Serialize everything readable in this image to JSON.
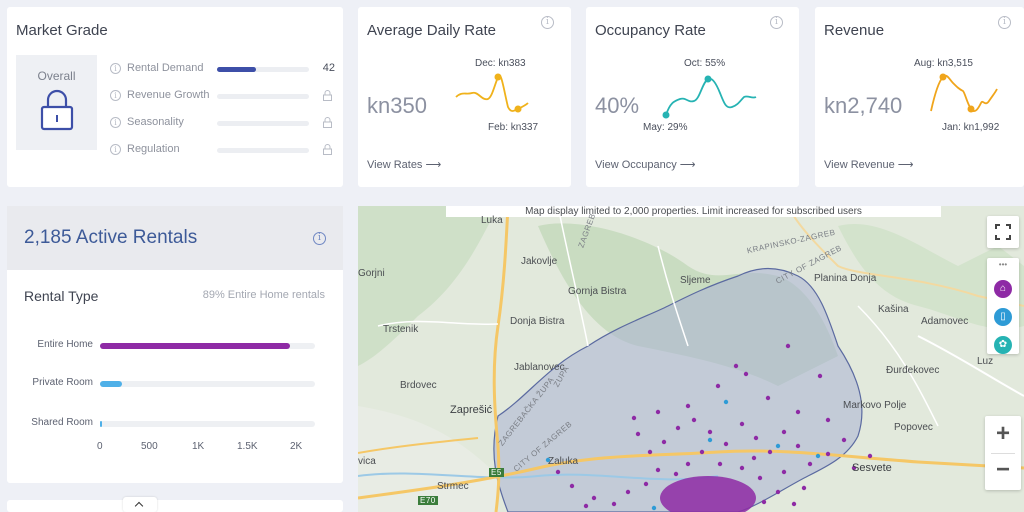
{
  "market_grade": {
    "title": "Market Grade",
    "overall_label": "Overall",
    "metrics": [
      {
        "label": "Rental Demand",
        "value": "42",
        "fill": 0.42,
        "locked": false
      },
      {
        "label": "Revenue Growth",
        "locked": true
      },
      {
        "label": "Seasonality",
        "locked": true
      },
      {
        "label": "Regulation",
        "locked": true
      }
    ],
    "accent": "#3d4fa8"
  },
  "adr": {
    "title": "Average Daily Rate",
    "value": "kn350",
    "high": "Dec: kn383",
    "low": "Feb: kn337",
    "link": "View Rates ⟶",
    "color": "#f0b21b"
  },
  "occupancy": {
    "title": "Occupancy Rate",
    "value": "40%",
    "high": "Oct: 55%",
    "low": "May: 29%",
    "link": "View Occupancy ⟶",
    "color": "#26b3b3"
  },
  "revenue": {
    "title": "Revenue",
    "value": "kn2,740",
    "high": "Aug: kn3,515",
    "low": "Jan: kn1,992",
    "link": "View Revenue ⟶",
    "color": "#f0a51b"
  },
  "active_rentals": {
    "title": "2,185 Active Rentals",
    "rental_type_title": "Rental Type",
    "rental_type_note": "89% Entire Home rentals",
    "rows": [
      {
        "label": "Entire Home",
        "value": 1940,
        "color": "#8e2aa5"
      },
      {
        "label": "Private Room",
        "value": 220,
        "color": "#4fb0e8"
      },
      {
        "label": "Shared Room",
        "value": 20,
        "color": "#4fb0e8"
      }
    ],
    "axis_ticks": [
      "0",
      "500",
      "1K",
      "1.5K",
      "2K"
    ],
    "axis_max": 2200
  },
  "map": {
    "notice": "Map display limited to 2,000 properties. Limit increased for subscribed users",
    "places": [
      {
        "name": "Luka"
      },
      {
        "name": "Jakovlje"
      },
      {
        "name": "Gornja Bistra"
      },
      {
        "name": "Sljeme"
      },
      {
        "name": "Planina Donja"
      },
      {
        "name": "Gorjni"
      },
      {
        "name": "Kašina"
      },
      {
        "name": "Trstenik"
      },
      {
        "name": "Donja Bistra"
      },
      {
        "name": "Adamovec"
      },
      {
        "name": "Jablanovec"
      },
      {
        "name": "Đurđekovec"
      },
      {
        "name": "Brdovec"
      },
      {
        "name": "Zaprešić"
      },
      {
        "name": "Markovo Polje"
      },
      {
        "name": "Popovec"
      },
      {
        "name": "Sesvete"
      },
      {
        "name": "Zaluka"
      },
      {
        "name": "Strmec"
      },
      {
        "name": "vica"
      },
      {
        "name": "Luz"
      }
    ],
    "roads": [
      "KRAPINSKO-ZAGREB",
      "CITY OF ZAGREB",
      "ZAGREBAČKA ŽUPA",
      "CITY OF ZAGREB",
      "ZAGREB",
      "ZUPA",
      "E5",
      "E70"
    ],
    "zoom_in": "+",
    "zoom_out": "−",
    "more": "•••"
  }
}
